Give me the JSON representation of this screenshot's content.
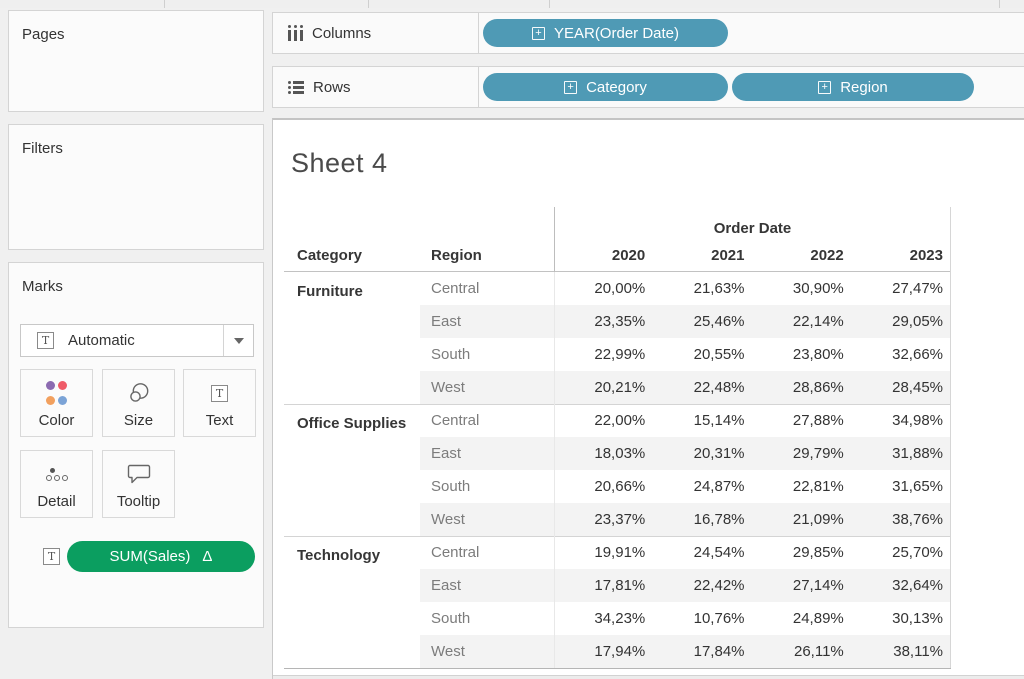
{
  "colors": {
    "pill_blue": "#4f9ab5",
    "pill_green": "#0b9e60",
    "band_gray": "#f3f3f3",
    "dot_purple": "#8c6bb1",
    "dot_red": "#ef5b68",
    "dot_orange": "#f2a05e",
    "dot_blue": "#7ba3d6"
  },
  "shelves": {
    "columns": {
      "label": "Columns",
      "pills": [
        {
          "label": "YEAR(Order Date)"
        }
      ]
    },
    "rows": {
      "label": "Rows",
      "pills": [
        {
          "label": "Category"
        },
        {
          "label": "Region"
        }
      ]
    }
  },
  "sidebar": {
    "pages": {
      "title": "Pages"
    },
    "filters": {
      "title": "Filters"
    },
    "marks": {
      "title": "Marks",
      "mark_type": {
        "value": "Automatic"
      },
      "buttons": [
        {
          "label": "Color"
        },
        {
          "label": "Size"
        },
        {
          "label": "Text"
        },
        {
          "label": "Detail"
        },
        {
          "label": "Tooltip"
        }
      ],
      "encoding": {
        "field": "SUM(Sales)",
        "modifier": "Δ"
      }
    }
  },
  "main": {
    "sheet_title": "Sheet 4",
    "table": {
      "type": "table",
      "col_dimension": "Order Date",
      "row_dimensions": [
        "Category",
        "Region"
      ],
      "years": [
        "2020",
        "2021",
        "2022",
        "2023"
      ],
      "groups": [
        {
          "category": "Furniture",
          "rows": [
            {
              "region": "Central",
              "values": [
                "20,00%",
                "21,63%",
                "30,90%",
                "27,47%"
              ]
            },
            {
              "region": "East",
              "values": [
                "23,35%",
                "25,46%",
                "22,14%",
                "29,05%"
              ]
            },
            {
              "region": "South",
              "values": [
                "22,99%",
                "20,55%",
                "23,80%",
                "32,66%"
              ]
            },
            {
              "region": "West",
              "values": [
                "20,21%",
                "22,48%",
                "28,86%",
                "28,45%"
              ]
            }
          ]
        },
        {
          "category": "Office Supplies",
          "rows": [
            {
              "region": "Central",
              "values": [
                "22,00%",
                "15,14%",
                "27,88%",
                "34,98%"
              ]
            },
            {
              "region": "East",
              "values": [
                "18,03%",
                "20,31%",
                "29,79%",
                "31,88%"
              ]
            },
            {
              "region": "South",
              "values": [
                "20,66%",
                "24,87%",
                "22,81%",
                "31,65%"
              ]
            },
            {
              "region": "West",
              "values": [
                "23,37%",
                "16,78%",
                "21,09%",
                "38,76%"
              ]
            }
          ]
        },
        {
          "category": "Technology",
          "rows": [
            {
              "region": "Central",
              "values": [
                "19,91%",
                "24,54%",
                "29,85%",
                "25,70%"
              ]
            },
            {
              "region": "East",
              "values": [
                "17,81%",
                "22,42%",
                "27,14%",
                "32,64%"
              ]
            },
            {
              "region": "South",
              "values": [
                "34,23%",
                "10,76%",
                "24,89%",
                "30,13%"
              ]
            },
            {
              "region": "West",
              "values": [
                "17,94%",
                "17,84%",
                "26,11%",
                "38,11%"
              ]
            }
          ]
        }
      ]
    }
  }
}
